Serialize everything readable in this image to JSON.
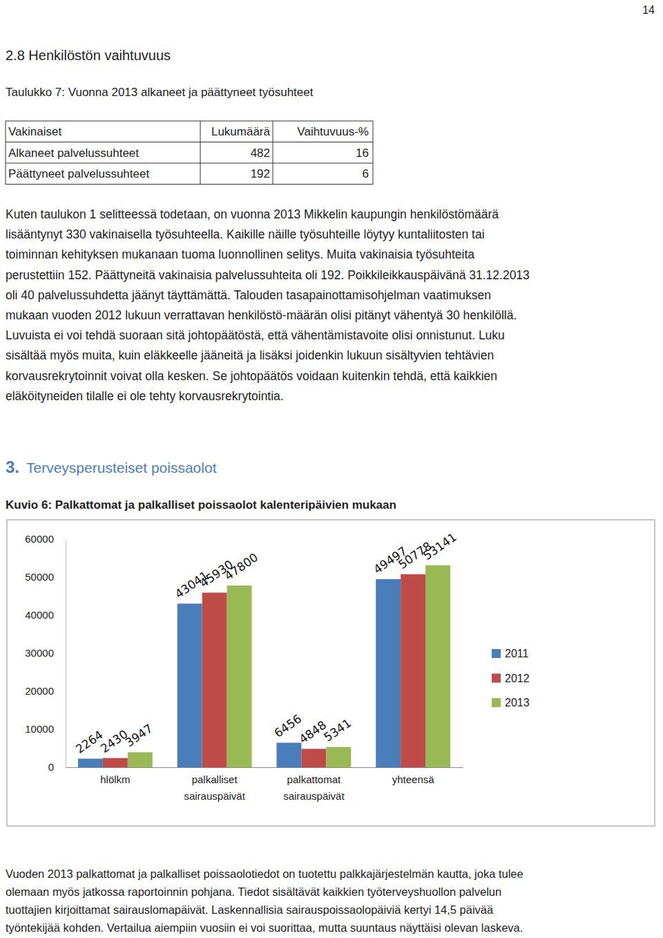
{
  "page_number": "14",
  "section": {
    "heading": "2.8 Henkilöstön vaihtuvuus",
    "table_caption": "Taulukko 7: Vuonna 2013 alkaneet ja päättyneet työsuhteet",
    "table": {
      "header": [
        "Vakinaiset",
        "Lukumäärä",
        "Vaihtuvuus-%"
      ],
      "rows": [
        [
          "Alkaneet palvelussuhteet",
          482,
          16
        ],
        [
          "Päättyneet palvelussuhteet",
          192,
          6
        ]
      ]
    },
    "paragraph_lines": [
      "Kuten taulukon 1 selitteessä todetaan, on vuonna 2013 Mikkelin kaupungin henkilöstömäärä",
      "lisääntynyt 330 vakinaisella työsuhteella. Kaikille näille työsuhteille löytyy kuntaliitosten tai",
      "toiminnan kehityksen mukanaan tuoma luonnollinen selitys. Muita vakinaisia työsuhteita",
      "perustettiin 152. Päättyneitä vakinaisia palvelussuhteita oli 192. Poikkileikkauspäivänä 31.12.2013",
      "oli 40 palvelussuhdetta jäänyt täyttämättä. Talouden tasapainottamisohjelman vaatimuksen",
      "mukaan vuoden 2012 lukuun verrattavan henkilöstö-määrän olisi pitänyt vähentyä 30 henkilöllä.",
      "Luvuista ei voi tehdä suoraan sitä johtopäätöstä, että vähentämistavoite olisi onnistunut. Luku",
      "sisältää myös muita, kuin eläkkeelle jääneitä ja lisäksi joidenkin lukuun sisältyvien tehtävien",
      "korvausrekrytoinnit voivat olla kesken. Se johtopäätös voidaan kuitenkin tehdä, että kaikkien",
      "eläköityneiden tilalle ei ole tehty korvausrekrytointia."
    ]
  },
  "section2": {
    "number": "3.",
    "title": "Terveysperusteiset poissaolot",
    "figure_caption": "Kuvio 6: Palkattomat ja palkalliset poissaolot kalenteripäivien mukaan"
  },
  "chart_data": {
    "type": "bar",
    "categories": [
      "hlölkm",
      "palkalliset sairauspäivät",
      "palkattomat sairauspäivät",
      "yhteensä"
    ],
    "series": [
      {
        "name": "2011",
        "color": "#4a7ebb",
        "values": [
          2264,
          43041,
          6456,
          49497
        ]
      },
      {
        "name": "2012",
        "color": "#be4b48",
        "values": [
          2430,
          45930,
          4848,
          50778
        ]
      },
      {
        "name": "2013",
        "color": "#98b954",
        "values": [
          3947,
          47800,
          5341,
          53141
        ]
      }
    ],
    "ylim": [
      0,
      60000
    ],
    "yticks": [
      0,
      10000,
      20000,
      30000,
      40000,
      50000,
      60000
    ],
    "grid": false,
    "legend": "right",
    "data_labels": true
  },
  "footnote_lines": [
    "Vuoden 2013 palkattomat ja palkalliset poissaolotiedot on tuotettu palkkajärjestelmän kautta, joka tulee",
    "olemaan myös jatkossa raportoinnin pohjana. Tiedot sisältävät kaikkien työterveyshuollon palvelun",
    "tuottajien kirjoittamat sairauslomapäivät. Laskennallisia sairauspoissaolopäiviä kertyi 14,5 päivää",
    "työntekijää kohden. Vertailua aiempiin vuosiin ei voi suorittaa, mutta suuntaus näyttäisi olevan laskeva."
  ]
}
